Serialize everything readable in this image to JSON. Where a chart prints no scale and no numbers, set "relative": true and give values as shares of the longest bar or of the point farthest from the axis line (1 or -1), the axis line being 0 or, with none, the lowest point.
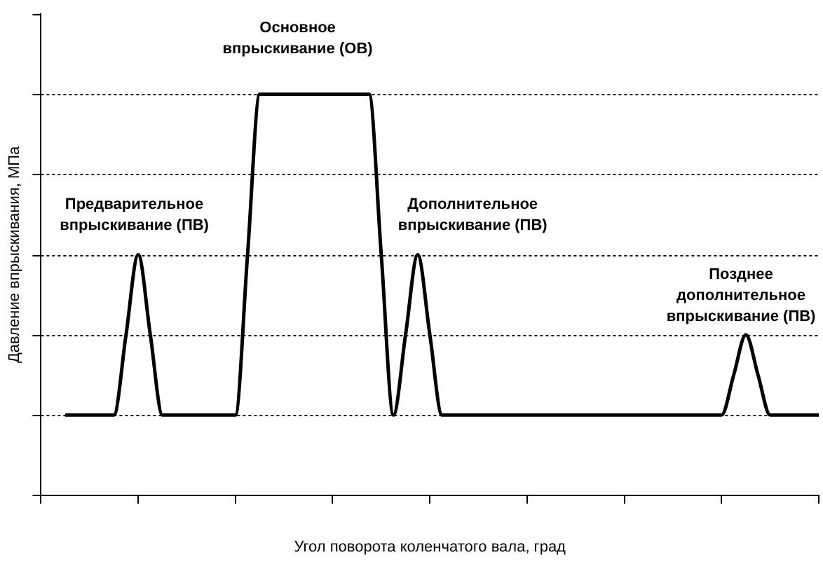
{
  "chart_data": {
    "type": "line",
    "relative": true,
    "xlabel": "Угол поворота коленчатого вала, град",
    "ylabel": "Давление впрыскивания, МПа",
    "categories": [
      null,
      null,
      null,
      null,
      null,
      null,
      null,
      null,
      null,
      null,
      null,
      null,
      null,
      null,
      null,
      null,
      null,
      null,
      null,
      null,
      null,
      null,
      null,
      null,
      null,
      null,
      null,
      null,
      null,
      null,
      null,
      null,
      null,
      null,
      null,
      null,
      null,
      null,
      null,
      null,
      null,
      null,
      null,
      null,
      null,
      null,
      null,
      null,
      null,
      null,
      null,
      null,
      null,
      null,
      null,
      null,
      null,
      null,
      null,
      null,
      null,
      null,
      null,
      null,
      null
    ],
    "series": [
      {
        "color": "#000000",
        "values": [
          null,
          null,
          0.2,
          0.2,
          0.2,
          0.2,
          0.2,
          0.4,
          0.6,
          0.4,
          0.2,
          0.2,
          0.2,
          0.2,
          0.2,
          0.2,
          0.2,
          0.6,
          1,
          1,
          1,
          1,
          1,
          1,
          1,
          1,
          1,
          1,
          0.6,
          0.2,
          0.4,
          0.6,
          0.4,
          0.2,
          0.2,
          0.2,
          0.2,
          0.2,
          0.2,
          0.2,
          0.2,
          0.2,
          0.2,
          0.2,
          0.2,
          0.2,
          0.2,
          0.2,
          0.2,
          0.2,
          0.2,
          0.2,
          0.2,
          0.2,
          0.2,
          0.2,
          0.2,
          0.3,
          0.4,
          0.3,
          0.2,
          0.2,
          0.2,
          0.2,
          0.2
        ]
      }
    ],
    "legend": false,
    "marker": "none",
    "line_style": "solid",
    "ref_lines": [
      {
        "axis": "y",
        "value": 0.2,
        "color": "#000000",
        "line_style": "dotted"
      },
      {
        "axis": "y",
        "value": 0.4,
        "color": "#000000",
        "line_style": "dotted"
      },
      {
        "axis": "y",
        "value": 0.6,
        "color": "#000000",
        "line_style": "dotted"
      },
      {
        "axis": "y",
        "value": 0.8,
        "color": "#000000",
        "line_style": "dotted"
      },
      {
        "axis": "y",
        "value": 1,
        "color": "#000000",
        "line_style": "dotted"
      }
    ],
    "annotations": [
      "Основное впрыскивание (ОВ)",
      "Предварительное впрыскивание (ПВ)",
      "Дополнительное впрыскивание (ПВ)",
      "Позднее дополнительное впрыскивание (ПВ)"
    ]
  }
}
